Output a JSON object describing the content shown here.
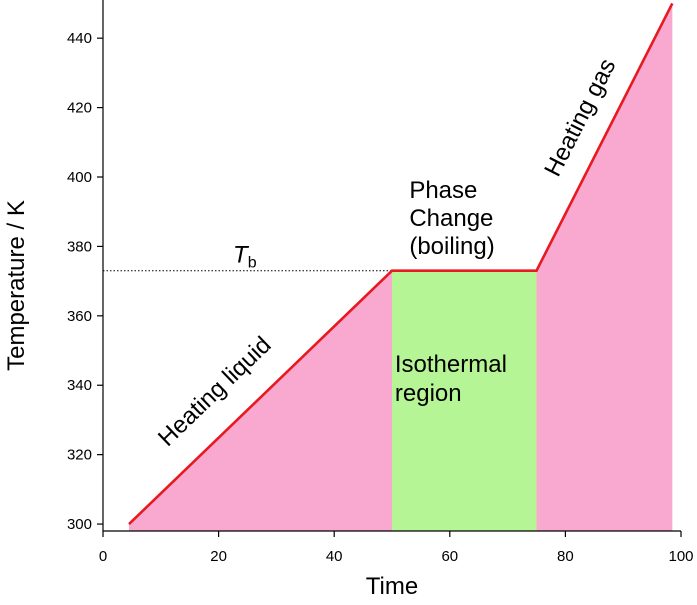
{
  "chart_data": {
    "type": "area",
    "title": "",
    "xlabel": "Time",
    "ylabel": "Temperature / K",
    "xlim": [
      0,
      100
    ],
    "ylim": [
      298,
      451
    ],
    "grid": false,
    "x_ticks": [
      0,
      20,
      40,
      60,
      80,
      100
    ],
    "y_ticks": [
      300,
      320,
      340,
      360,
      380,
      400,
      420,
      440
    ],
    "series": [
      {
        "x": [
          4.5,
          50,
          75,
          98.5
        ],
        "y": [
          300,
          373,
          373,
          450
        ]
      }
    ],
    "regions": [
      {
        "x_start": 4.5,
        "x_end": 50,
        "label": "Heating liquid"
      },
      {
        "x_start": 50,
        "x_end": 75,
        "label": "Isothermal region"
      },
      {
        "x_start": 75,
        "x_end": 98.5,
        "label": "Heating gas"
      }
    ],
    "reference_line": {
      "y": 373,
      "x_start": 0,
      "x_end": 50,
      "label_main": "T",
      "label_sub": "b"
    },
    "annotations": {
      "phase_change": [
        "Phase",
        "Change",
        "(boiling)"
      ],
      "isothermal": [
        "Isothermal",
        "region"
      ]
    },
    "colors": {
      "line": "#e8191f",
      "liquid_fill": "#f9a8d0",
      "isothermal_fill": "#b6f596",
      "gas_fill": "#f9a8d0",
      "reference_line": "#000000"
    }
  }
}
